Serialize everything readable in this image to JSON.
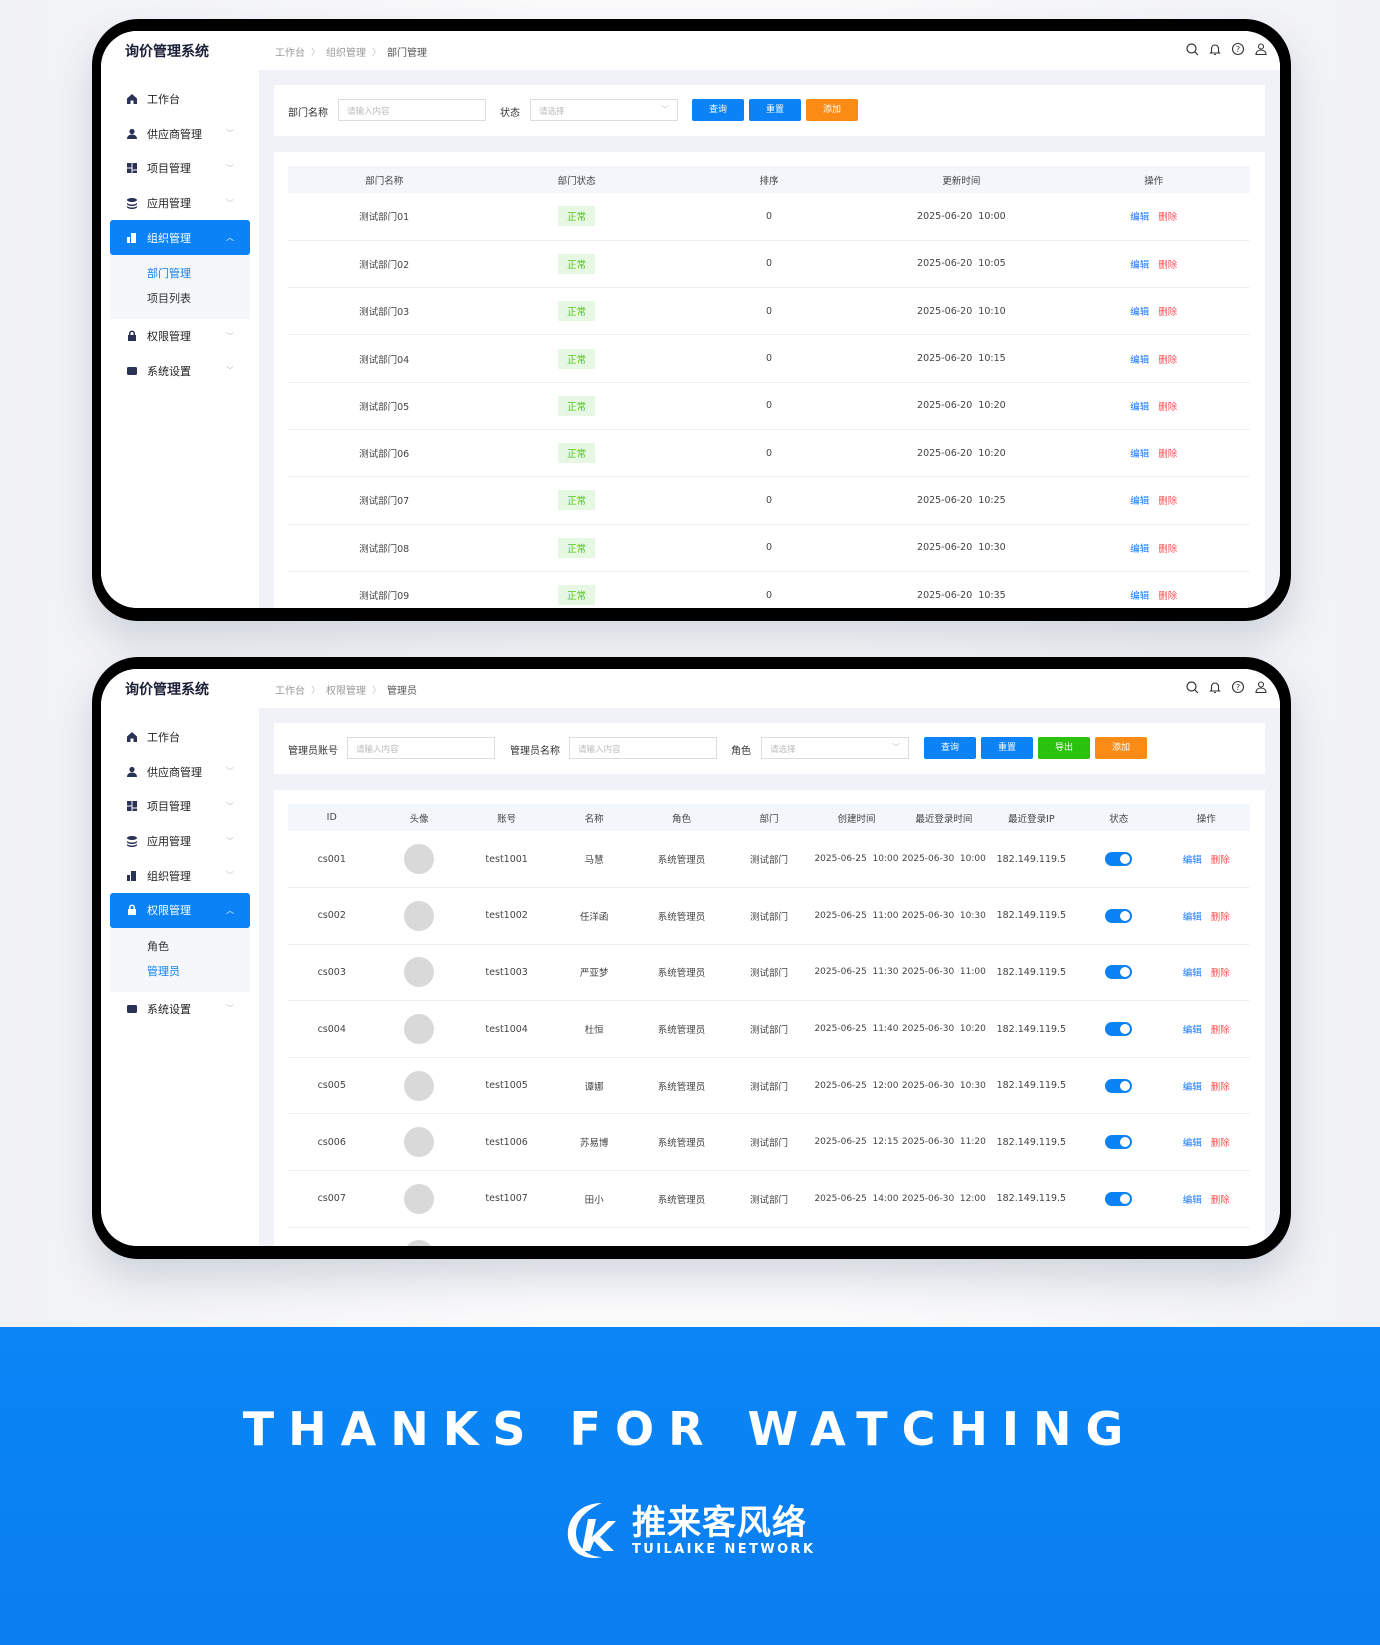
{
  "app_title": "询价管理系统",
  "colors": {
    "primary": "#0b82f5",
    "success": "#52c41a",
    "warning": "#fa8c16",
    "export": "#2bc20e",
    "danger": "#ff4d4f"
  },
  "header_icons": [
    "search-icon",
    "bell-icon",
    "help-icon",
    "user-icon"
  ],
  "screen1": {
    "breadcrumb": [
      "工作台",
      "组织管理",
      "部门管理"
    ],
    "menu": [
      {
        "label": "工作台",
        "icon": "home-icon"
      },
      {
        "label": "供应商管理",
        "icon": "user-icon"
      },
      {
        "label": "项目管理",
        "icon": "grid-icon"
      },
      {
        "label": "应用管理",
        "icon": "layers-icon"
      },
      {
        "label": "组织管理",
        "icon": "building-icon",
        "active": true,
        "sub": [
          "部门管理",
          "项目列表"
        ],
        "sub_active": 0
      },
      {
        "label": "权限管理",
        "icon": "lock-icon"
      },
      {
        "label": "系统设置",
        "icon": "settings-icon"
      }
    ],
    "filters": {
      "name_label": "部门名称",
      "name_placeholder": "请输入内容",
      "status_label": "状态",
      "status_placeholder": "请选择",
      "query": "查询",
      "reset": "重置",
      "add": "添加"
    },
    "columns": [
      "部门名称",
      "部门状态",
      "排序",
      "更新时间",
      "操作"
    ],
    "rows": [
      {
        "name": "测试部门01",
        "status": "正常",
        "order": "0",
        "time": "2025-06-20  10:00"
      },
      {
        "name": "测试部门02",
        "status": "正常",
        "order": "0",
        "time": "2025-06-20  10:05"
      },
      {
        "name": "测试部门03",
        "status": "正常",
        "order": "0",
        "time": "2025-06-20  10:10"
      },
      {
        "name": "测试部门04",
        "status": "正常",
        "order": "0",
        "time": "2025-06-20  10:15"
      },
      {
        "name": "测试部门05",
        "status": "正常",
        "order": "0",
        "time": "2025-06-20  10:20"
      },
      {
        "name": "测试部门06",
        "status": "正常",
        "order": "0",
        "time": "2025-06-20  10:20"
      },
      {
        "name": "测试部门07",
        "status": "正常",
        "order": "0",
        "time": "2025-06-20  10:25"
      },
      {
        "name": "测试部门08",
        "status": "正常",
        "order": "0",
        "time": "2025-06-20  10:30"
      },
      {
        "name": "测试部门09",
        "status": "正常",
        "order": "0",
        "time": "2025-06-20  10:35"
      }
    ],
    "edit": "编辑",
    "delete": "删除"
  },
  "screen2": {
    "breadcrumb": [
      "工作台",
      "权限管理",
      "管理员"
    ],
    "menu": [
      {
        "label": "工作台",
        "icon": "home-icon"
      },
      {
        "label": "供应商管理",
        "icon": "user-icon"
      },
      {
        "label": "项目管理",
        "icon": "grid-icon"
      },
      {
        "label": "应用管理",
        "icon": "layers-icon"
      },
      {
        "label": "组织管理",
        "icon": "building-icon"
      },
      {
        "label": "权限管理",
        "icon": "lock-icon",
        "active": true,
        "sub": [
          "角色",
          "管理员"
        ],
        "sub_active": 1
      },
      {
        "label": "系统设置",
        "icon": "settings-icon"
      }
    ],
    "filters": {
      "account_label": "管理员账号",
      "account_placeholder": "请输入内容",
      "name_label": "管理员名称",
      "name_placeholder": "请输入内容",
      "role_label": "角色",
      "role_placeholder": "请选择",
      "query": "查询",
      "reset": "重置",
      "export": "导出",
      "add": "添加"
    },
    "columns": [
      "ID",
      "头像",
      "账号",
      "名称",
      "角色",
      "部门",
      "创建时间",
      "最近登录时间",
      "最近登录IP",
      "状态",
      "操作"
    ],
    "rows": [
      {
        "id": "cs001",
        "account": "test1001",
        "name": "马慧",
        "role": "系统管理员",
        "dept": "测试部门",
        "created": "2025-06-25  10:00",
        "last_login": "2025-06-30  10:00",
        "ip": "182.149.119.5",
        "enabled": true
      },
      {
        "id": "cs002",
        "account": "test1002",
        "name": "任洋函",
        "role": "系统管理员",
        "dept": "测试部门",
        "created": "2025-06-25  11:00",
        "last_login": "2025-06-30  10:30",
        "ip": "182.149.119.5",
        "enabled": true
      },
      {
        "id": "cs003",
        "account": "test1003",
        "name": "严亚梦",
        "role": "系统管理员",
        "dept": "测试部门",
        "created": "2025-06-25  11:30",
        "last_login": "2025-06-30  11:00",
        "ip": "182.149.119.5",
        "enabled": true
      },
      {
        "id": "cs004",
        "account": "test1004",
        "name": "杜恒",
        "role": "系统管理员",
        "dept": "测试部门",
        "created": "2025-06-25  11:40",
        "last_login": "2025-06-30  10:20",
        "ip": "182.149.119.5",
        "enabled": true
      },
      {
        "id": "cs005",
        "account": "test1005",
        "name": "谭娜",
        "role": "系统管理员",
        "dept": "测试部门",
        "created": "2025-06-25  12:00",
        "last_login": "2025-06-30  10:30",
        "ip": "182.149.119.5",
        "enabled": true
      },
      {
        "id": "cs006",
        "account": "test1006",
        "name": "苏易博",
        "role": "系统管理员",
        "dept": "测试部门",
        "created": "2025-06-25  12:15",
        "last_login": "2025-06-30  11:20",
        "ip": "182.149.119.5",
        "enabled": true
      },
      {
        "id": "cs007",
        "account": "test1007",
        "name": "田小",
        "role": "系统管理员",
        "dept": "测试部门",
        "created": "2025-06-25  14:00",
        "last_login": "2025-06-30  12:00",
        "ip": "182.149.119.5",
        "enabled": true
      }
    ],
    "edit": "编辑",
    "delete": "删除"
  },
  "footer": {
    "thanks": "THANKS FOR WATCHING",
    "logo_cn": "推来客风络",
    "logo_en": "TUILAIKE NETWORK"
  }
}
